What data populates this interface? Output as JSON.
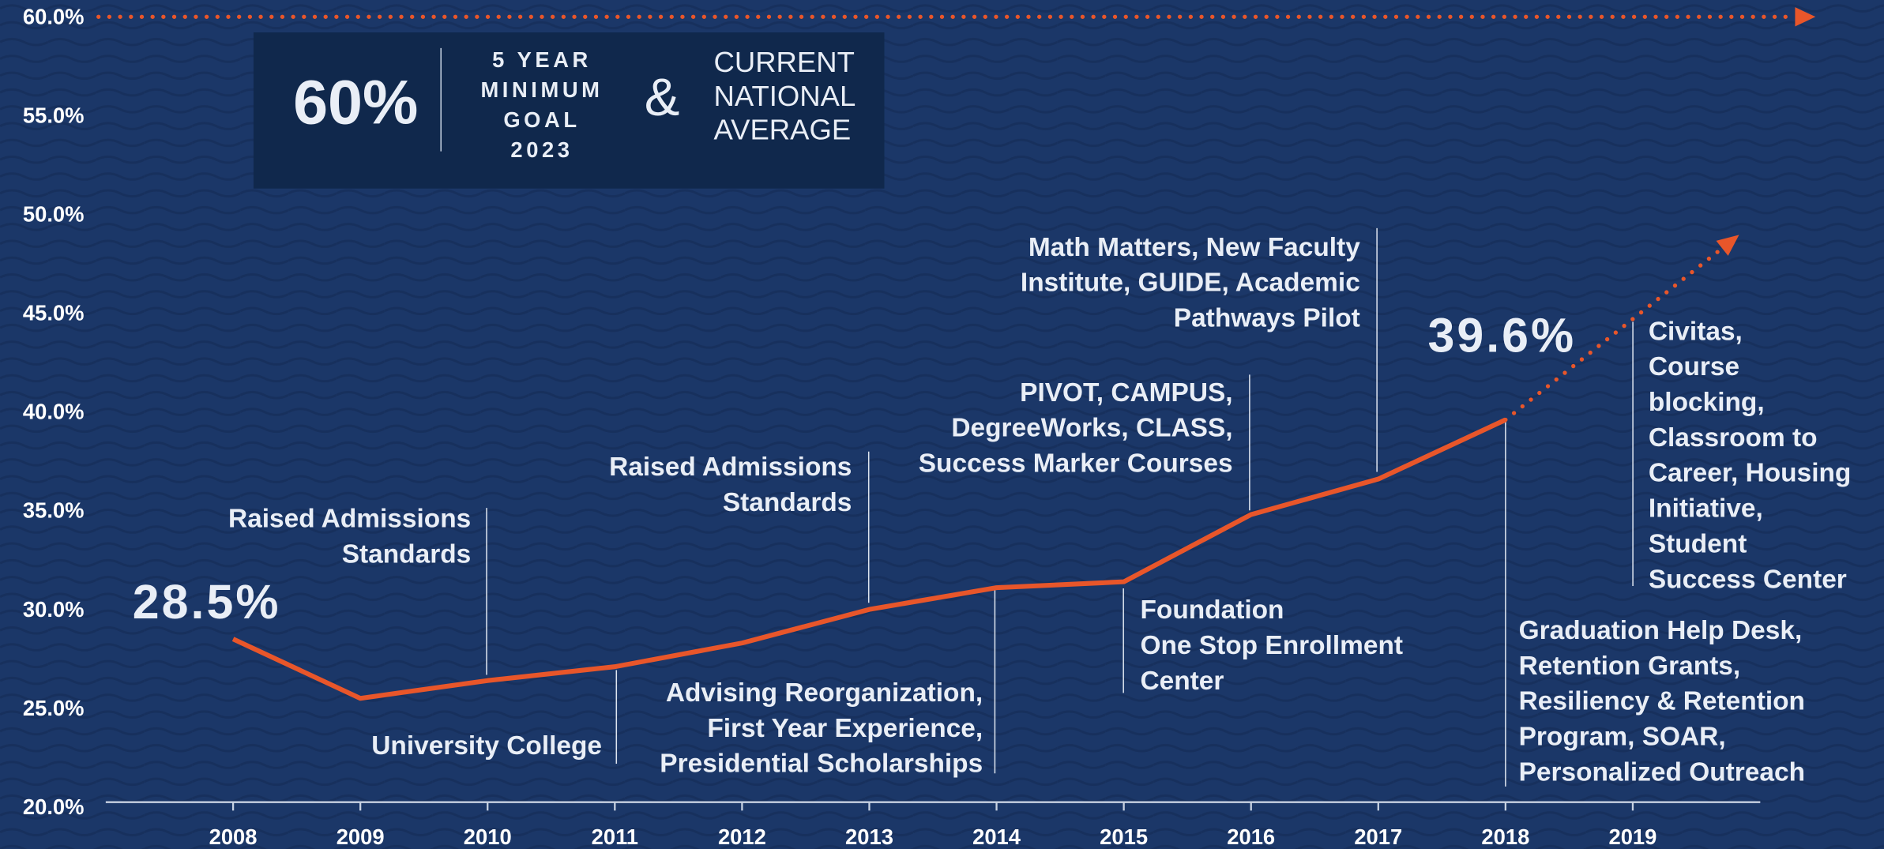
{
  "chart_data": {
    "type": "line",
    "categories": [
      "2008",
      "2009",
      "2010",
      "2011",
      "2012",
      "2013",
      "2014",
      "2015",
      "2016",
      "2017",
      "2018",
      "2019"
    ],
    "values": [
      28.5,
      25.5,
      26.4,
      27.1,
      28.3,
      30.0,
      31.1,
      31.4,
      34.8,
      36.6,
      39.6,
      null
    ],
    "value_labels": [
      "28.5%",
      null,
      null,
      null,
      null,
      null,
      null,
      null,
      null,
      null,
      "39.6%",
      null
    ],
    "projection": [
      null,
      null,
      null,
      null,
      null,
      null,
      null,
      null,
      null,
      null,
      39.6,
      44.7
    ],
    "goal": 60,
    "color": "#e8562a",
    "ylim": [
      20,
      60
    ],
    "yticks": [
      {
        "value": 20,
        "label": "20.0%"
      },
      {
        "value": 25,
        "label": "25.0%"
      },
      {
        "value": 30,
        "label": "30.0%"
      },
      {
        "value": 35,
        "label": "35.0%"
      },
      {
        "value": 40,
        "label": "40.0%"
      },
      {
        "value": 45,
        "label": "45.0%"
      },
      {
        "value": 50,
        "label": "50.0%"
      },
      {
        "value": 55,
        "label": "55.0%"
      },
      {
        "value": 60,
        "label": "60.0%"
      }
    ],
    "callout": {
      "big": "60%",
      "goal_lines": [
        "5 YEAR",
        "MINIMUM",
        "GOAL",
        "2023"
      ],
      "amp": "&",
      "avg_lines": [
        "CURRENT",
        "NATIONAL",
        "AVERAGE"
      ]
    },
    "annotations": [
      {
        "lines": [
          "Raised Admissions",
          "Standards"
        ]
      },
      {
        "lines": [
          "University College"
        ]
      },
      {
        "lines": [
          "Advising Reorganization,",
          "First Year Experience,",
          "Presidential Scholarships"
        ]
      },
      {
        "lines": [
          "Raised Admissions",
          "Standards"
        ]
      },
      {
        "lines": [
          "PIVOT, CAMPUS,",
          "DegreeWorks, CLASS,",
          "Success Marker Courses"
        ]
      },
      {
        "lines": [
          "Math Matters, New Faculty",
          "Institute, GUIDE, Academic",
          "Pathways Pilot"
        ]
      },
      {
        "lines": [
          "Foundation",
          "One Stop Enrollment",
          "Center"
        ]
      },
      {
        "lines": [
          "Civitas,",
          "Course",
          "blocking,",
          "Classroom to",
          "Career, Housing",
          "Initiative,",
          "Student",
          "Success Center"
        ]
      },
      {
        "lines": [
          "Graduation Help Desk,",
          "Retention Grants,",
          "Resiliency & Retention",
          "Program, SOAR,",
          "Personalized Outreach"
        ]
      }
    ]
  }
}
